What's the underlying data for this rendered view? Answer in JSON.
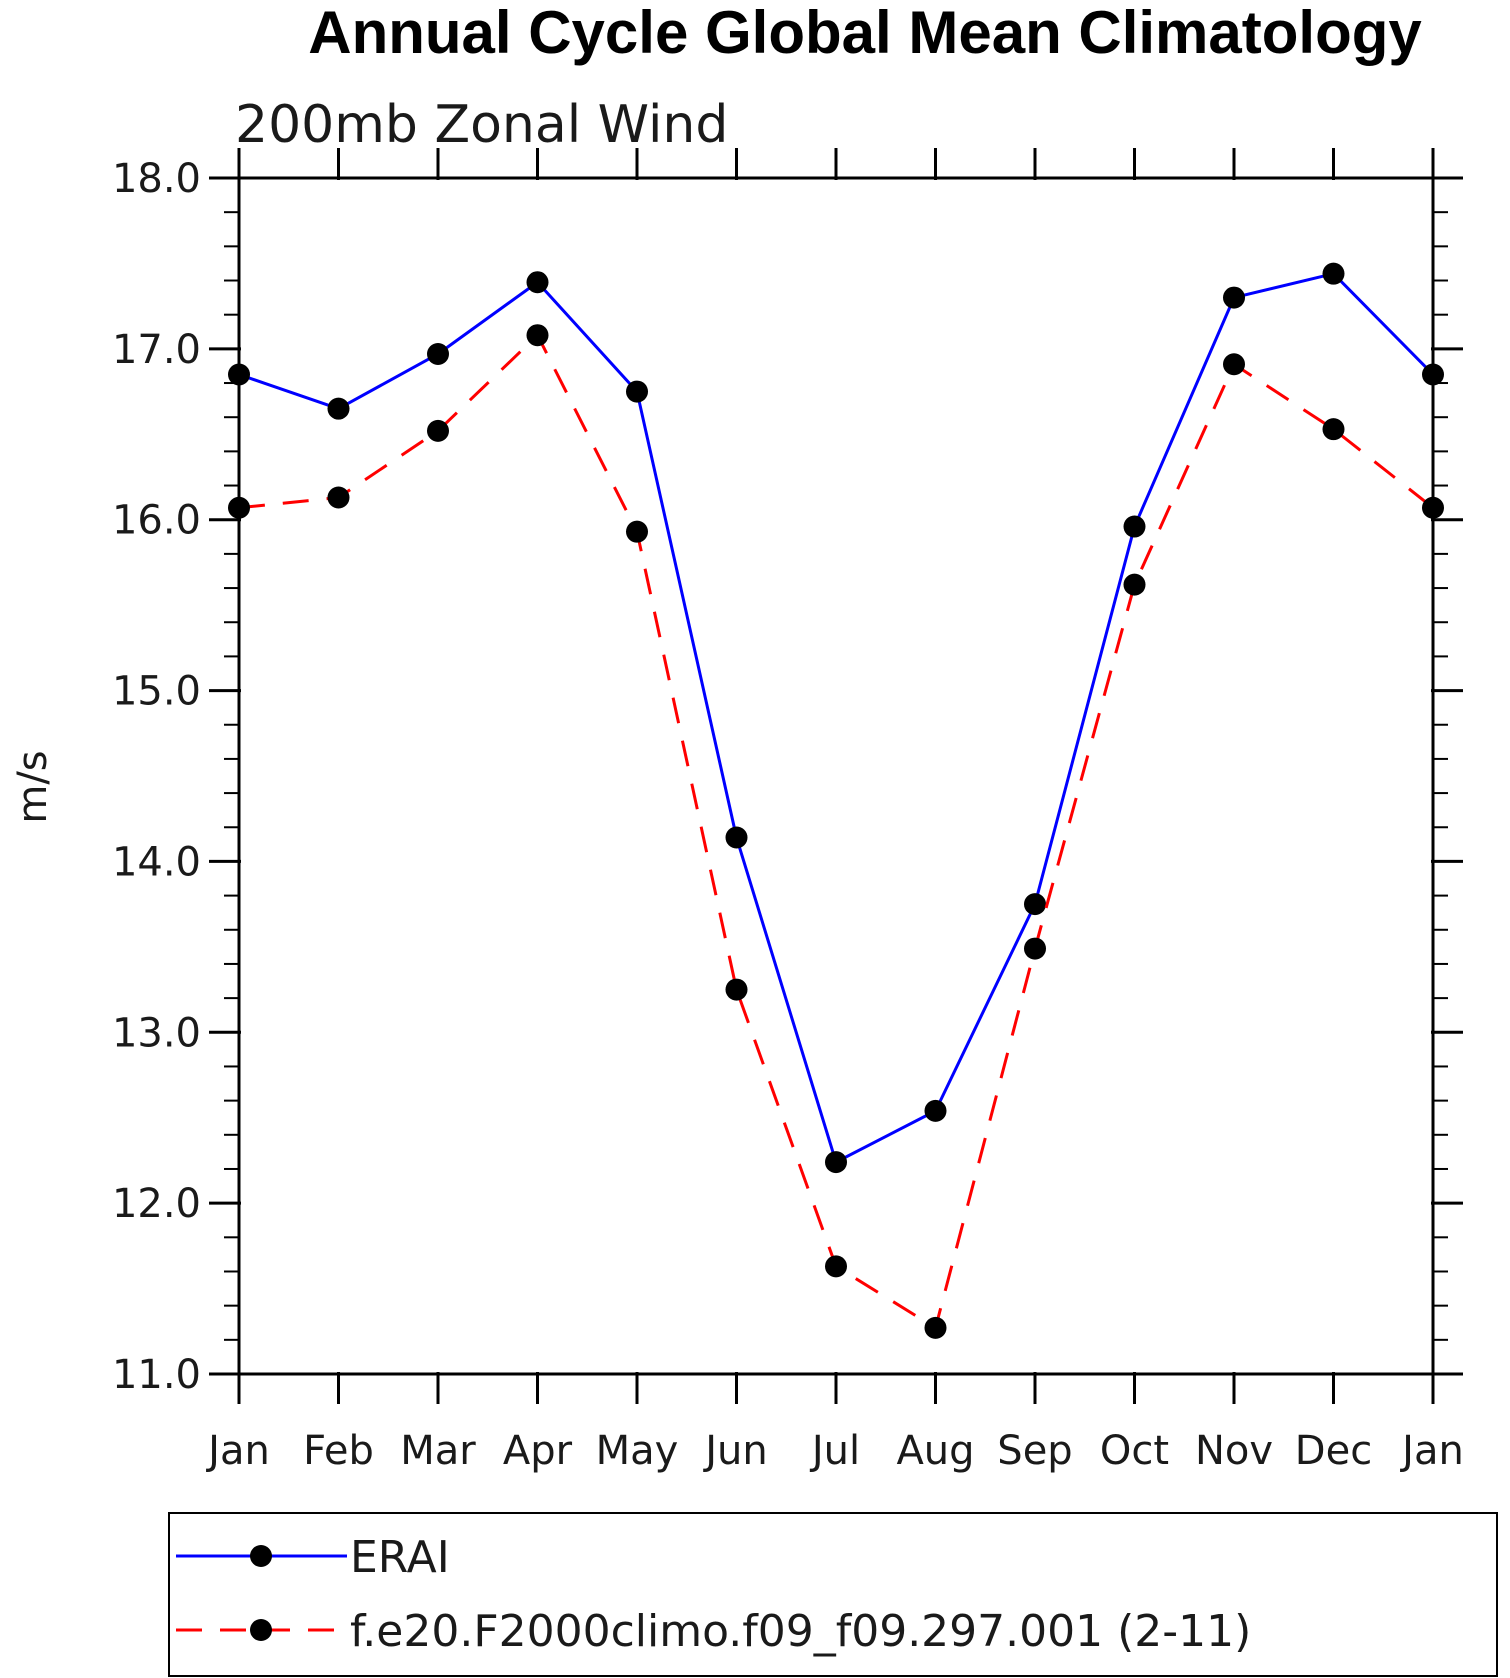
{
  "chart_data": {
    "type": "line",
    "title": "Annual Cycle Global Mean Climatology",
    "subtitle": "200mb Zonal Wind",
    "xlabel": "",
    "ylabel": "m/s",
    "categories": [
      "Jan",
      "Feb",
      "Mar",
      "Apr",
      "May",
      "Jun",
      "Jul",
      "Aug",
      "Sep",
      "Oct",
      "Nov",
      "Dec",
      "Jan"
    ],
    "ylim": [
      11.0,
      18.0
    ],
    "yticks": [
      "11.0",
      "12.0",
      "13.0",
      "14.0",
      "15.0",
      "16.0",
      "17.0",
      "18.0"
    ],
    "y_minor_step": 0.2,
    "grid": false,
    "legend_position": "bottom",
    "series": [
      {
        "name": "ERAI",
        "color": "#0000ff",
        "dash": "solid",
        "marker_color": "#000000",
        "values": [
          16.85,
          16.65,
          16.97,
          17.39,
          16.75,
          14.14,
          12.24,
          12.54,
          13.75,
          15.96,
          17.3,
          17.44,
          16.85
        ]
      },
      {
        "name": "f.e20.F2000climo.f09_f09.297.001 (2-11)",
        "color": "#ff0000",
        "dash": "dashed",
        "marker_color": "#000000",
        "values": [
          16.07,
          16.13,
          16.52,
          17.08,
          15.93,
          13.25,
          11.63,
          11.27,
          13.49,
          15.62,
          16.91,
          16.53,
          16.07
        ]
      }
    ]
  }
}
